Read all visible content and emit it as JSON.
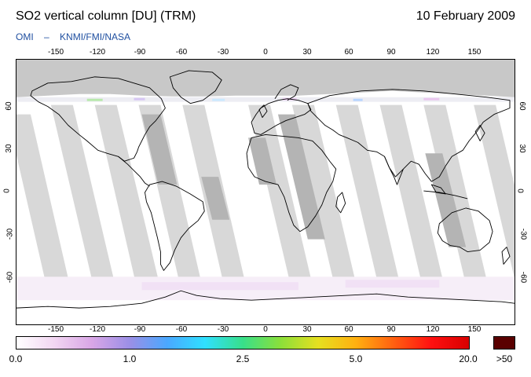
{
  "header": {
    "title": "SO2 vertical column [DU] (TRM)",
    "date": "10 February 2009",
    "credit_instrument": "OMI",
    "credit_dash": "–",
    "credit_sources": "KNMI/FMI/NASA"
  },
  "map": {
    "projection": "equirectangular",
    "lon_ticks": [
      "-150",
      "-120",
      "-90",
      "-60",
      "-30",
      "0",
      "30",
      "60",
      "90",
      "120",
      "150"
    ],
    "lat_ticks": [
      "60",
      "30",
      "0",
      "-30",
      "-60"
    ],
    "background_color": "#ffffff",
    "no_data_color": "#d8d8d8",
    "polar_no_data_color": "#c8c8c8",
    "coastline_color": "#000000"
  },
  "colorbar": {
    "labels": [
      "0.0",
      "1.0",
      "2.5",
      "5.0",
      "20.0"
    ],
    "over_label": ">50",
    "gradient_colors": [
      "#ffffff",
      "#f2d6f2",
      "#d9a6e6",
      "#9b8fe6",
      "#4aa8ff",
      "#2fe0ff",
      "#38e08a",
      "#8be03a",
      "#e6e020",
      "#ffb010",
      "#ff6010",
      "#ff1010",
      "#d80000"
    ],
    "over_color": "#5a0000"
  }
}
